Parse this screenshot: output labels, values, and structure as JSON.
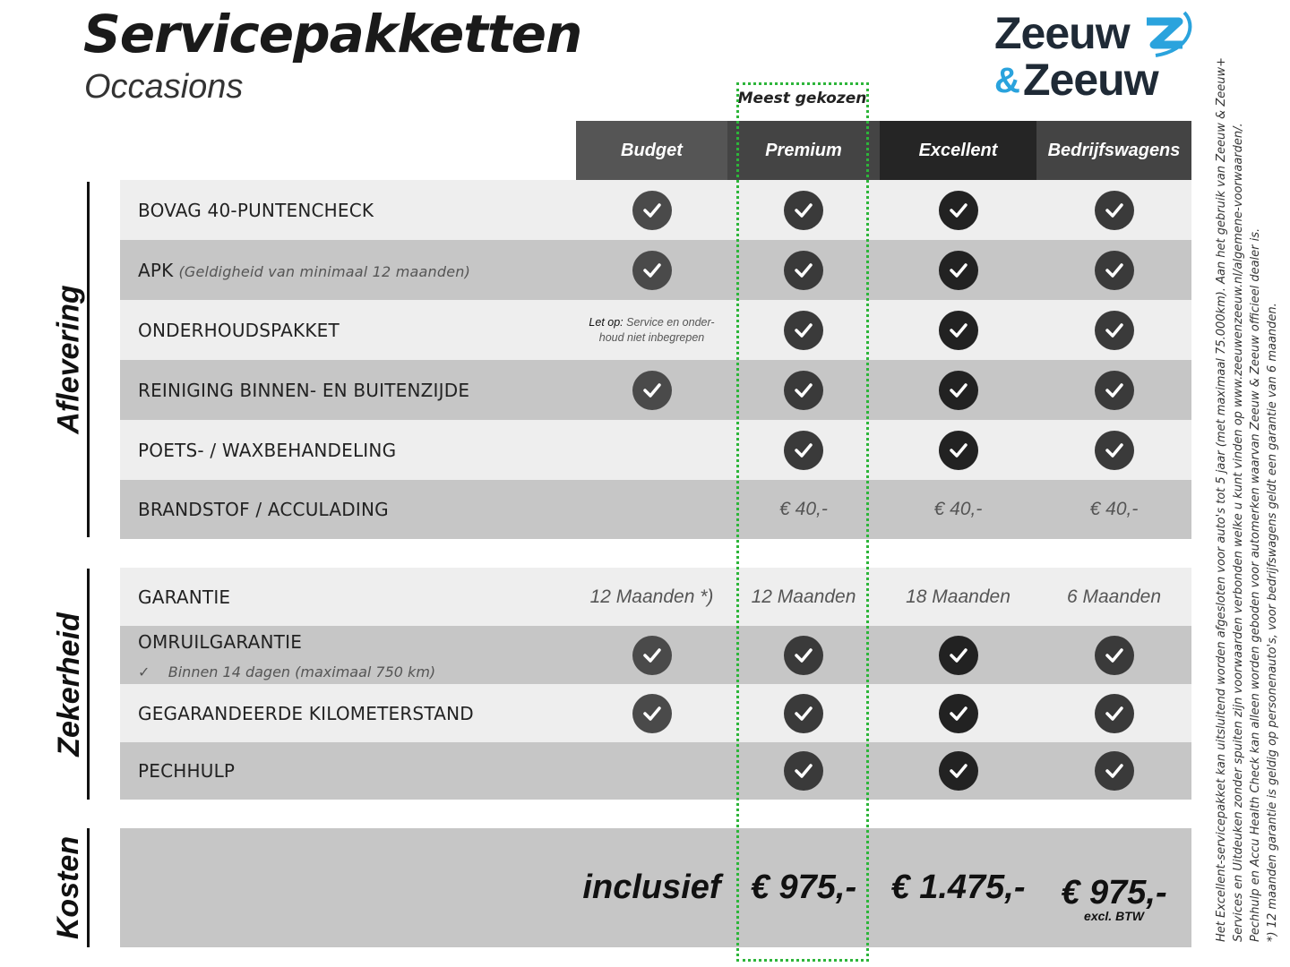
{
  "header": {
    "title": "Servicepakketten",
    "subtitle": "Occasions",
    "logo_text": [
      "Zeeuw",
      "&",
      "Zeeuw"
    ],
    "most_chosen": "Meest gekozen"
  },
  "columns": [
    {
      "name": "Budget",
      "header_color": "#555555",
      "check_color": "#4a4a4a"
    },
    {
      "name": "Premium",
      "header_color": "#444444",
      "check_color": "#3a3a3a"
    },
    {
      "name": "Excellent",
      "header_color": "#252525",
      "check_color": "#222222"
    },
    {
      "name": "Bedrijfswagens",
      "header_color": "#444444",
      "check_color": "#3a3a3a"
    }
  ],
  "sections": [
    {
      "name": "Aflevering",
      "rows": [
        {
          "label": "BOVAG 40-PUNTENCHECK",
          "cells": [
            "check",
            "check",
            "check",
            "check"
          ]
        },
        {
          "label": "APK",
          "note": "(Geldigheid van minimaal 12 maanden)",
          "cells": [
            "check",
            "check",
            "check",
            "check"
          ]
        },
        {
          "label": "ONDERHOUDSPAKKET",
          "cells": [
            "note",
            "check",
            "check",
            "check"
          ],
          "budget_note_bold": "Let op:",
          "budget_note": "Service en onder-",
          "budget_note2": "houd niet inbegrepen"
        },
        {
          "label": "REINIGING BINNEN- EN BUITENZIJDE",
          "cells": [
            "check",
            "check",
            "check",
            "check"
          ]
        },
        {
          "label": "POETS- / WAXBEHANDELING",
          "cells": [
            "",
            "check",
            "check",
            "check"
          ]
        },
        {
          "label": "BRANDSTOF / ACCULADING",
          "cells": [
            "",
            "€ 40,-",
            "€ 40,-",
            "€ 40,-"
          ]
        }
      ]
    },
    {
      "name": "Zekerheid",
      "rows": [
        {
          "label": "GARANTIE",
          "cells": [
            "12 Maanden *)",
            "12 Maanden",
            "18 Maanden",
            "6 Maanden"
          ]
        },
        {
          "label": "OMRUILGARANTIE",
          "sub": "Binnen 14 dagen (maximaal 750 km)",
          "cells": [
            "check",
            "check",
            "check",
            "check"
          ]
        },
        {
          "label": "GEGARANDEERDE KILOMETERSTAND",
          "cells": [
            "check",
            "check",
            "check",
            "check"
          ]
        },
        {
          "label": "PECHHULP",
          "cells": [
            "",
            "check",
            "check",
            "check"
          ]
        }
      ]
    },
    {
      "name": "Kosten",
      "prices": [
        "inclusief",
        "€ 975,-",
        "€ 1.475,-",
        "€ 975,-"
      ],
      "price_note": "excl. BTW"
    }
  ],
  "footnotes": [
    "Het Excellent-servicepakket kan uitsluitend worden afgesloten voor auto's tot 5 jaar (met maximaal 75.000km). Aan het gebruik van Zeeuw & Zeeuw+",
    "Services en Uitdeuken zonder spuiten zijn voorwaarden verbonden welke u kunt vinden op www.zeeuwenzeeuw.nl/algemene-voorwaarden/.",
    "Pechhulp en Accu Health Check kan alleen worden geboden voor automerken waarvan Zeeuw & Zeeuw officieel dealer is.",
    "*) 12 maanden garantie is geldig op personenauto's, voor bedrijfswagens geldt een garantie van 6 maanden."
  ],
  "colors": {
    "row_light": "#eeeeee",
    "row_dark": "#c6c6c6",
    "highlight": "#2db53a",
    "logo_dark": "#1f2a36",
    "logo_blue": "#2aa3dd"
  }
}
